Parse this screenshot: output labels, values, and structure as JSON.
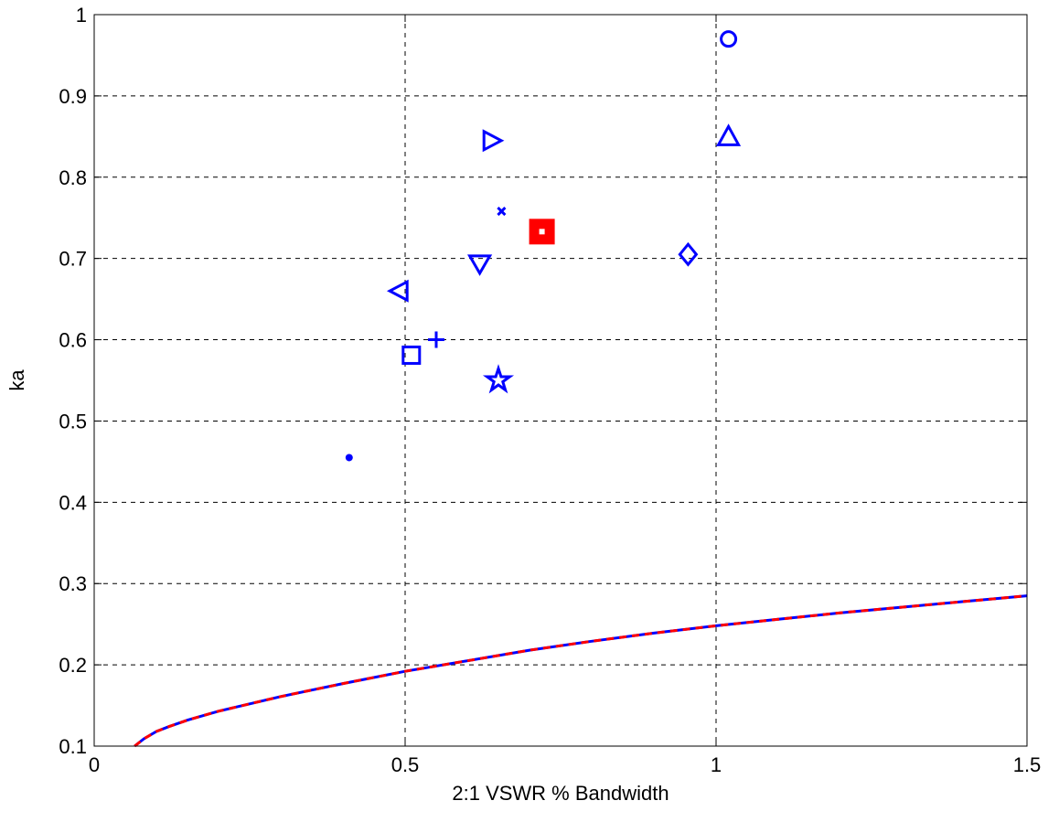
{
  "chart_data": {
    "type": "scatter",
    "xlabel": "2:1 VSWR % Bandwidth",
    "ylabel": "ka",
    "xlim": [
      0,
      1.5
    ],
    "ylim": [
      0.1,
      1
    ],
    "xticks": [
      0,
      0.5,
      1,
      1.5
    ],
    "xtick_labels": [
      "0",
      "0.5",
      "1",
      "1.5"
    ],
    "yticks": [
      0.1,
      0.2,
      0.3,
      0.4,
      0.5,
      0.6,
      0.7,
      0.8,
      0.9,
      1
    ],
    "ytick_labels": [
      "0.1",
      "0.2",
      "0.3",
      "0.4",
      "0.5",
      "0.6",
      "0.7",
      "0.8",
      "0.9",
      "1"
    ],
    "grid": true,
    "marker_color": "#0000ff",
    "highlight_color": "#ff0000",
    "points": [
      {
        "marker": "point-marker",
        "x": 0.41,
        "y": 0.455
      },
      {
        "marker": "square-marker",
        "x": 0.51,
        "y": 0.581
      },
      {
        "marker": "plus-marker",
        "x": 0.55,
        "y": 0.6
      },
      {
        "marker": "triangle-left-marker",
        "x": 0.49,
        "y": 0.66
      },
      {
        "marker": "triangle-down-marker",
        "x": 0.62,
        "y": 0.693
      },
      {
        "marker": "triangle-right-marker",
        "x": 0.64,
        "y": 0.845
      },
      {
        "marker": "x-marker",
        "x": 0.655,
        "y": 0.758
      },
      {
        "marker": "star-marker",
        "x": 0.65,
        "y": 0.55
      },
      {
        "marker": "filled-square-marker",
        "x": 0.72,
        "y": 0.733,
        "highlight": true
      },
      {
        "marker": "diamond-marker",
        "x": 0.955,
        "y": 0.705
      },
      {
        "marker": "circle-marker",
        "x": 1.02,
        "y": 0.97
      },
      {
        "marker": "triangle-up-marker",
        "x": 1.02,
        "y": 0.85
      }
    ],
    "series": [
      {
        "style": "solid",
        "color": "#0000ff",
        "x": [
          0.065,
          0.08,
          0.1,
          0.12,
          0.15,
          0.2,
          0.25,
          0.3,
          0.35,
          0.4,
          0.5,
          0.6,
          0.7,
          0.8,
          0.9,
          1.0,
          1.1,
          1.2,
          1.3,
          1.4,
          1.5
        ],
        "y": [
          0.1,
          0.109,
          0.118,
          0.124,
          0.132,
          0.143,
          0.152,
          0.161,
          0.169,
          0.177,
          0.192,
          0.205,
          0.218,
          0.229,
          0.239,
          0.248,
          0.256,
          0.264,
          0.271,
          0.278,
          0.285
        ]
      },
      {
        "style": "dashed",
        "color": "#ff0000",
        "x": [
          0.065,
          0.08,
          0.1,
          0.12,
          0.15,
          0.2,
          0.25,
          0.3,
          0.35,
          0.4,
          0.5,
          0.6,
          0.7,
          0.8,
          0.9,
          1.0,
          1.1,
          1.2,
          1.3,
          1.4,
          1.5
        ],
        "y": [
          0.1,
          0.109,
          0.118,
          0.124,
          0.132,
          0.143,
          0.152,
          0.161,
          0.169,
          0.177,
          0.192,
          0.205,
          0.218,
          0.229,
          0.239,
          0.248,
          0.256,
          0.264,
          0.271,
          0.278,
          0.285
        ]
      }
    ]
  }
}
